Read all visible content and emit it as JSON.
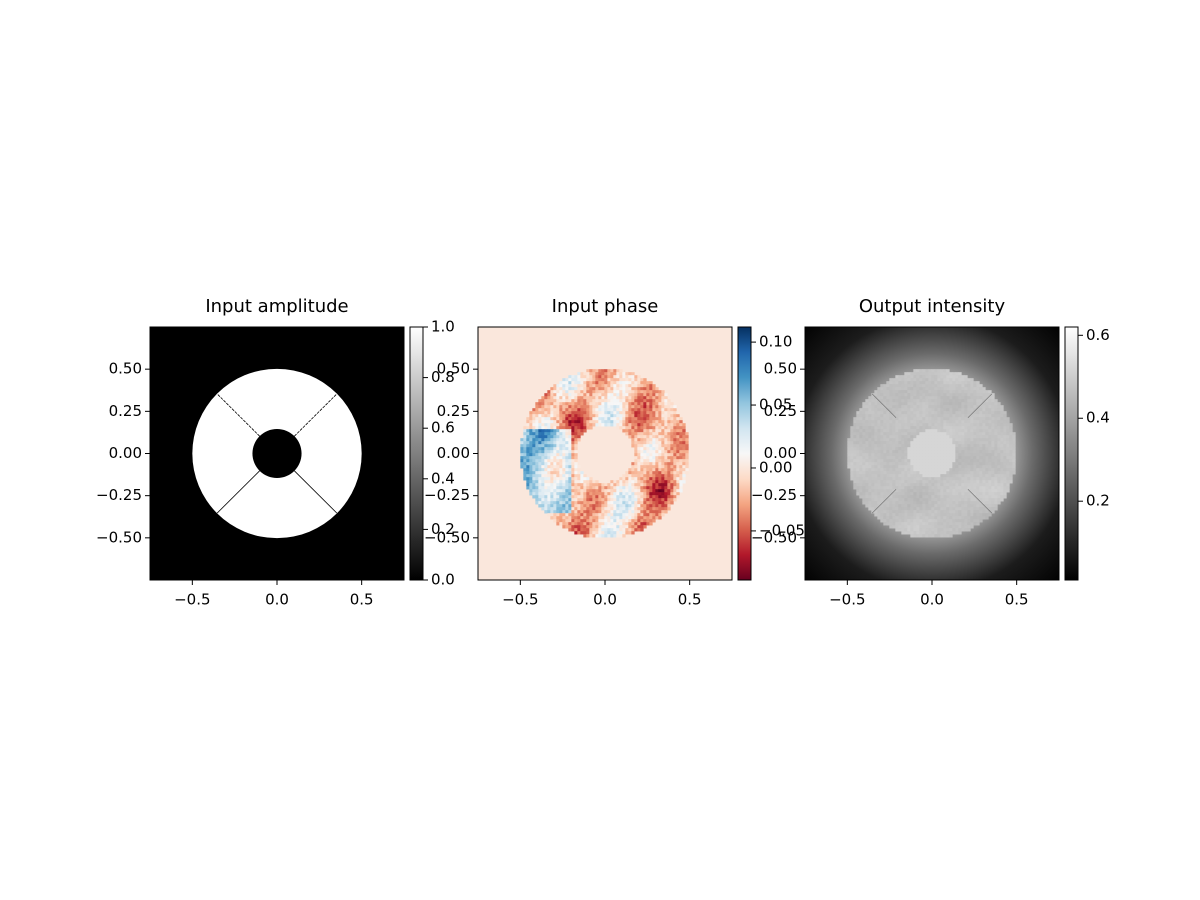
{
  "chart_data": [
    {
      "type": "image",
      "title": "Input amplitude",
      "xlim": [
        -0.75,
        0.75
      ],
      "ylim": [
        -0.75,
        0.75
      ],
      "xticks": [
        {
          "value": -0.5,
          "label": "−0.5"
        },
        {
          "value": 0,
          "label": "0.0"
        },
        0.5
      ],
      "yticks": [
        {
          "value": -0.5,
          "label": "−0.50"
        },
        {
          "value": -0.25,
          "label": "−0.25"
        },
        {
          "value": 0,
          "label": "0.00"
        },
        0.25,
        {
          "value": 0.5,
          "label": "0.50"
        }
      ],
      "cmap": "gray",
      "clim": [
        0,
        1
      ],
      "cticks": [
        {
          "value": 0,
          "label": "0.0"
        },
        0.2,
        0.4,
        0.6,
        0.8,
        {
          "value": 1,
          "label": "1.0"
        }
      ]
    },
    {
      "type": "image",
      "title": "Input phase",
      "xlim": [
        -0.75,
        0.75
      ],
      "ylim": [
        -0.75,
        0.75
      ],
      "xticks": [
        {
          "value": -0.5,
          "label": "−0.5"
        },
        {
          "value": 0,
          "label": "0.0"
        },
        0.5
      ],
      "yticks": [
        {
          "value": -0.5,
          "label": "−0.50"
        },
        {
          "value": -0.25,
          "label": "−0.25"
        },
        {
          "value": 0,
          "label": "0.00"
        },
        0.25,
        {
          "value": 0.5,
          "label": "0.50"
        }
      ],
      "cmap": "RdBu",
      "clim": [
        -0.089,
        0.112
      ],
      "cticks": [
        {
          "value": -0.05,
          "label": "−0.05"
        },
        {
          "value": 0,
          "label": "0.00"
        },
        0.05,
        {
          "value": 0.1,
          "label": "0.10"
        }
      ]
    },
    {
      "type": "image",
      "title": "Output intensity",
      "xlim": [
        -0.75,
        0.75
      ],
      "ylim": [
        -0.75,
        0.75
      ],
      "xticks": [
        {
          "value": -0.5,
          "label": "−0.5"
        },
        {
          "value": 0,
          "label": "0.0"
        },
        0.5
      ],
      "yticks": [
        {
          "value": -0.5,
          "label": "−0.50"
        },
        {
          "value": -0.25,
          "label": "−0.25"
        },
        {
          "value": 0,
          "label": "0.00"
        },
        0.25,
        {
          "value": 0.5,
          "label": "0.50"
        }
      ],
      "cmap": "gray",
      "clim": [
        0.01,
        0.62
      ],
      "cticks": [
        0.2,
        0.4,
        0.6
      ]
    }
  ]
}
